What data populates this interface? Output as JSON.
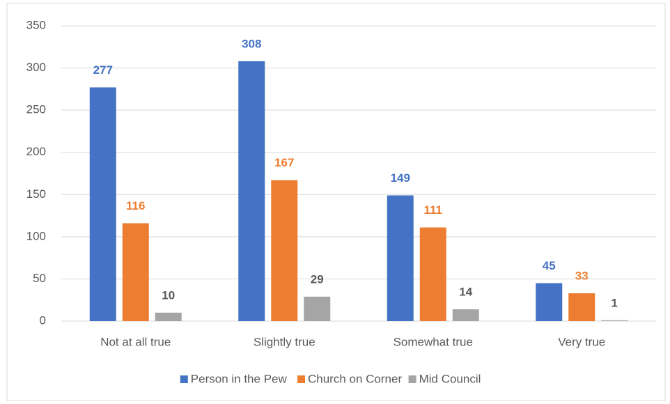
{
  "chart_data": {
    "type": "bar",
    "categories": [
      "Not at all true",
      "Slightly true",
      "Somewhat true",
      "Very true"
    ],
    "series": [
      {
        "name": "Person in the Pew",
        "color": "#4472c4",
        "values": [
          277,
          308,
          149,
          45
        ]
      },
      {
        "name": "Church on Corner",
        "color": "#ed7d31",
        "values": [
          116,
          167,
          111,
          33
        ]
      },
      {
        "name": "Mid Council",
        "color": "#a5a5a5",
        "values": [
          10,
          29,
          14,
          1
        ]
      }
    ],
    "ylim": [
      0,
      350
    ],
    "yticks": [
      0,
      50,
      100,
      150,
      200,
      250,
      300,
      350
    ],
    "grid": true,
    "legend": "bottom"
  }
}
